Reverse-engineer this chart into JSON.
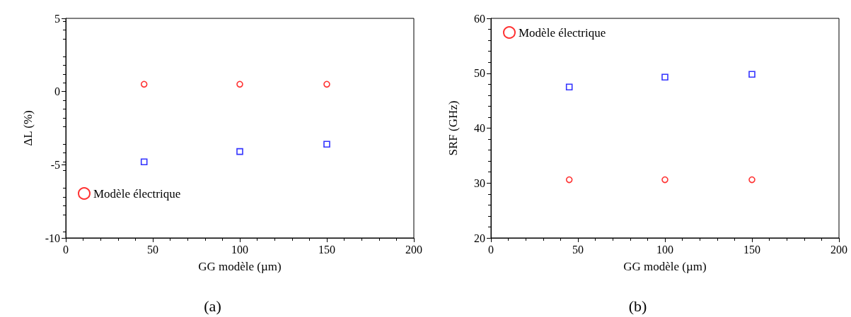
{
  "chart_data": [
    {
      "type": "scatter",
      "title": "(a)",
      "xlabel": "GG modèle (µm)",
      "ylabel": "ΔL (%)",
      "xlim": [
        0,
        200
      ],
      "xticks": [
        0,
        50,
        100,
        150,
        200
      ],
      "ylim": [
        -10,
        5
      ],
      "yticks": [
        -10,
        -5,
        0,
        5
      ],
      "legend": "bottom left",
      "grid": false,
      "series": [
        {
          "name": "Modèle électrique",
          "color": "#ff0000",
          "marker": "circle",
          "x": [
            45,
            100,
            150
          ],
          "values": [
            0.5,
            0.5,
            0.5
          ]
        },
        {
          "color": "#0000ff",
          "marker": "square",
          "x": [
            45,
            100,
            150
          ],
          "values": [
            -4.8,
            -4.1,
            -3.6
          ]
        }
      ]
    },
    {
      "type": "scatter",
      "title": "(b)",
      "xlabel": "GG modèle (µm)",
      "ylabel": "SRF (GHz)",
      "xlim": [
        0,
        200
      ],
      "xticks": [
        0,
        50,
        100,
        150,
        200
      ],
      "ylim": [
        20,
        60
      ],
      "yticks": [
        20,
        30,
        40,
        50,
        60
      ],
      "legend": "top left",
      "grid": false,
      "series": [
        {
          "name": "Modèle électrique",
          "color": "#ff0000",
          "marker": "circle",
          "x": [
            45,
            100,
            150
          ],
          "values": [
            30.6,
            30.6,
            30.6
          ]
        },
        {
          "color": "#0000ff",
          "marker": "square",
          "x": [
            45,
            100,
            150
          ],
          "values": [
            47.5,
            49.3,
            49.8
          ]
        }
      ]
    }
  ]
}
